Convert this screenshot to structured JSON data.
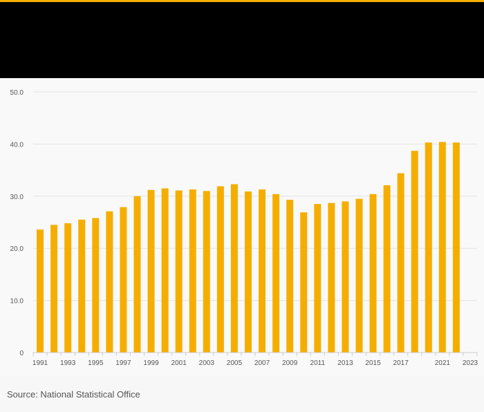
{
  "colors": {
    "accent": "#f5ae00",
    "header": "#000000",
    "bar": "#f5ae00",
    "grid": "#e2e2e2",
    "axis_text": "#555555"
  },
  "source": "Source: National Statistical Office",
  "chart_data": {
    "type": "bar",
    "title": "",
    "xlabel": "",
    "ylabel": "",
    "ylim": [
      0,
      50
    ],
    "y_ticks": [
      "0",
      "10.0",
      "20.0",
      "30.0",
      "40.0",
      "50.0"
    ],
    "x_tick_labels": [
      "1991",
      "1993",
      "1995",
      "1997",
      "1999",
      "2001",
      "2003",
      "2005",
      "2007",
      "2009",
      "2011",
      "2013",
      "2015",
      "2017",
      "2021",
      "2023"
    ],
    "grid": true,
    "categories": [
      "1991",
      "1992",
      "1993",
      "1994",
      "1995",
      "1996",
      "1997",
      "1998",
      "1999",
      "2000",
      "2001",
      "2002",
      "2003",
      "2004",
      "2005",
      "2006",
      "2007",
      "2008",
      "2009",
      "2010",
      "2011",
      "2012",
      "2013",
      "2014",
      "2015",
      "2016",
      "2017",
      "2018",
      "2019",
      "2021",
      "2022",
      "2023"
    ],
    "series": [
      {
        "values": [
          23.6,
          24.5,
          24.8,
          25.5,
          25.8,
          27.1,
          27.9,
          30.0,
          31.2,
          31.5,
          31.1,
          31.3,
          31.0,
          31.9,
          32.3,
          30.9,
          31.3,
          30.4,
          29.3,
          26.9,
          28.5,
          28.7,
          29.0,
          29.5,
          30.4,
          32.1,
          34.4,
          38.7,
          40.3,
          40.4,
          40.3,
          0
        ]
      }
    ]
  }
}
